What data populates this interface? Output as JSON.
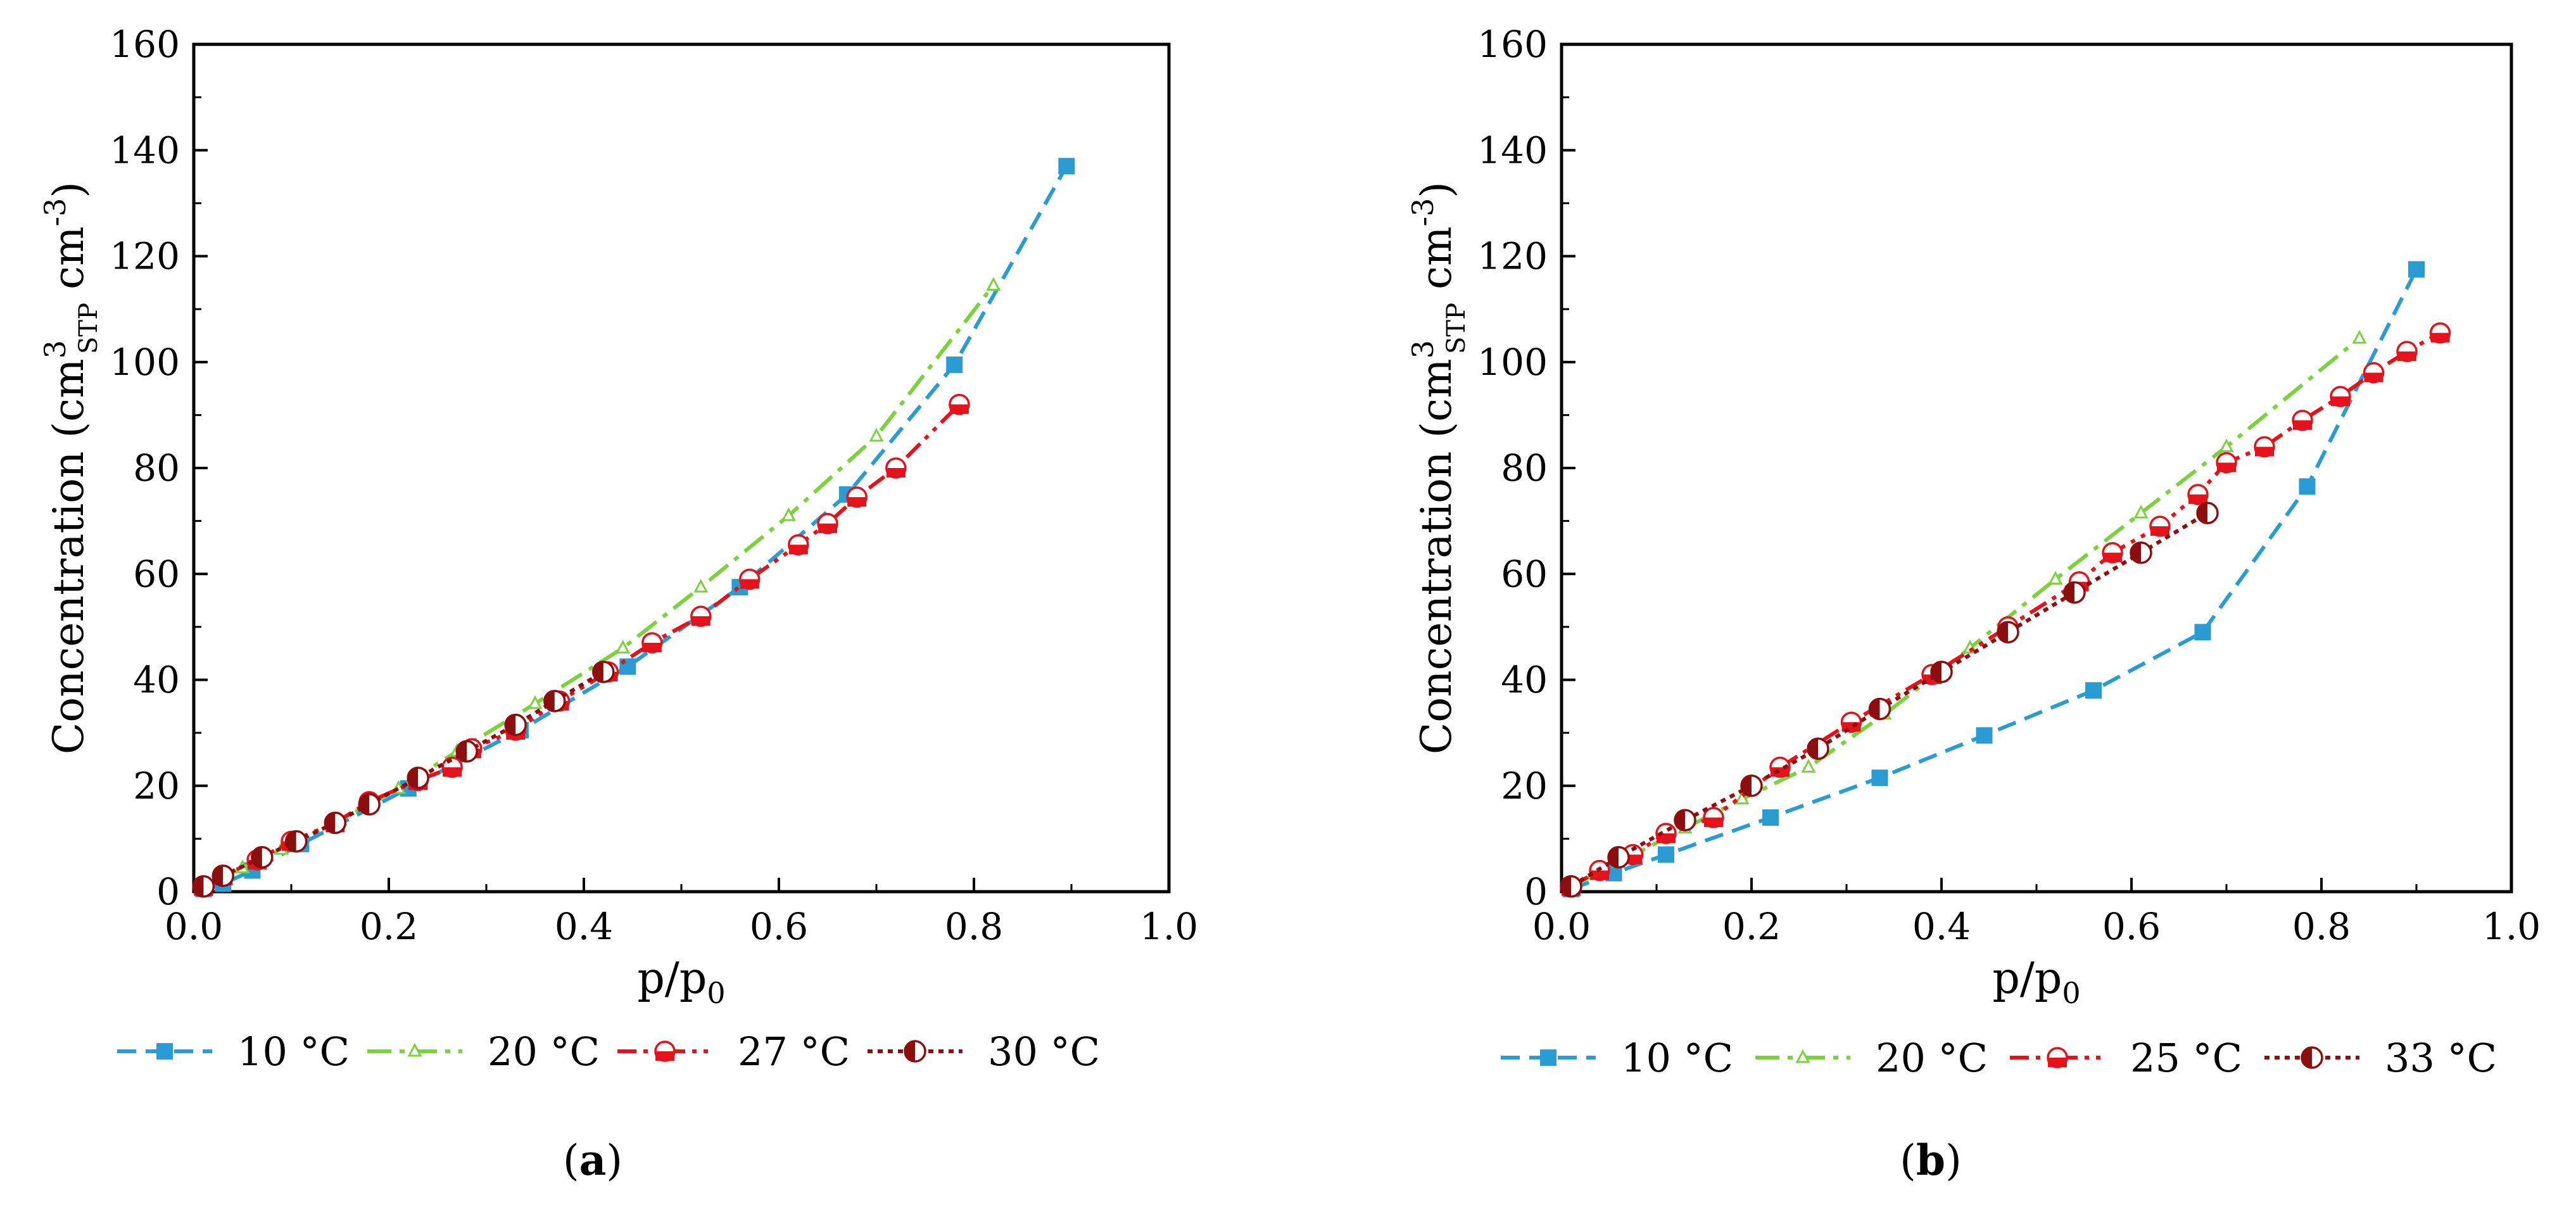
{
  "chart_data": [
    {
      "type": "line",
      "panel_label": "a",
      "xlabel_main": "p/p",
      "xlabel_sub": "0",
      "ylabel": {
        "prefix": "Concentration (cm",
        "sup1": "3",
        "sub": "STP",
        "mid": " cm",
        "sup2": "-3",
        "suffix": ")"
      },
      "xlim": [
        0.0,
        1.0
      ],
      "ylim": [
        0,
        160
      ],
      "xticks": [
        "0.0",
        "0.2",
        "0.4",
        "0.6",
        "0.8",
        "1.0"
      ],
      "yticks": [
        "0",
        "20",
        "40",
        "60",
        "80",
        "100",
        "120",
        "140",
        "160"
      ],
      "grid": false,
      "legend_position": "bottom",
      "series": [
        {
          "name": "10 °C",
          "color": "#2b9bd3",
          "dash": "dash",
          "marker": "square",
          "x": [
            0.01,
            0.03,
            0.06,
            0.11,
            0.22,
            0.335,
            0.445,
            0.56,
            0.67,
            0.78,
            0.895
          ],
          "y": [
            0.5,
            1.5,
            4,
            9,
            19.5,
            30.5,
            42.5,
            57.5,
            75,
            99.5,
            137
          ]
        },
        {
          "name": "20 °C",
          "color": "#7cd13f",
          "dash": "dashdot",
          "marker": "triangle",
          "x": [
            0.01,
            0.05,
            0.09,
            0.15,
            0.21,
            0.27,
            0.35,
            0.44,
            0.52,
            0.61,
            0.7,
            0.82
          ],
          "y": [
            1,
            4.5,
            8,
            13.5,
            19.5,
            26.5,
            35.5,
            46,
            57.5,
            71,
            86,
            114.5
          ]
        },
        {
          "name": "27 °C",
          "color": "#e5121c",
          "dash": "dashdotdot",
          "marker": "circle-half",
          "x": [
            0.01,
            0.03,
            0.065,
            0.1,
            0.145,
            0.18,
            0.23,
            0.265,
            0.285,
            0.33,
            0.375,
            0.425,
            0.47,
            0.52,
            0.57,
            0.62,
            0.65,
            0.68,
            0.72,
            0.785
          ],
          "y": [
            1,
            3,
            6,
            9.5,
            13,
            17,
            21,
            23.5,
            27,
            30.5,
            36,
            41.5,
            47,
            52,
            59,
            65.5,
            69.5,
            74.5,
            80,
            92
          ]
        },
        {
          "name": "30 °C",
          "color": "#8b0f0f",
          "dash": "dot",
          "marker": "circle-half-dark",
          "x": [
            0.01,
            0.03,
            0.07,
            0.105,
            0.145,
            0.18,
            0.23,
            0.28,
            0.33,
            0.37,
            0.42
          ],
          "y": [
            1,
            3,
            6.5,
            9.5,
            13,
            16.5,
            21.5,
            26.5,
            31.5,
            36,
            41.5
          ]
        }
      ]
    },
    {
      "type": "line",
      "panel_label": "b",
      "xlabel_main": "p/p",
      "xlabel_sub": "0",
      "ylabel": {
        "prefix": "Concentration (cm",
        "sup1": "3",
        "sub": "STP",
        "mid": " cm",
        "sup2": "-3",
        "suffix": ")"
      },
      "xlim": [
        0.0,
        1.0
      ],
      "ylim": [
        0,
        160
      ],
      "xticks": [
        "0.0",
        "0.2",
        "0.4",
        "0.6",
        "0.8",
        "1.0"
      ],
      "yticks": [
        "0",
        "20",
        "40",
        "60",
        "80",
        "100",
        "120",
        "140",
        "160"
      ],
      "grid": false,
      "legend_position": "bottom",
      "series": [
        {
          "name": "10 °C",
          "color": "#2b9bd3",
          "dash": "dash",
          "marker": "square",
          "x": [
            0.01,
            0.055,
            0.11,
            0.22,
            0.335,
            0.445,
            0.56,
            0.675,
            0.785,
            0.9
          ],
          "y": [
            0.5,
            3.5,
            7,
            14,
            21.5,
            29.5,
            38,
            49,
            76.5,
            117.5
          ]
        },
        {
          "name": "20 °C",
          "color": "#7cd13f",
          "dash": "dashdot",
          "marker": "triangle",
          "x": [
            0.01,
            0.06,
            0.13,
            0.19,
            0.26,
            0.34,
            0.43,
            0.52,
            0.61,
            0.7,
            0.84
          ],
          "y": [
            1,
            5.5,
            12,
            17.5,
            23.5,
            33.5,
            46,
            59,
            71.5,
            84,
            104.5
          ]
        },
        {
          "name": "25 °C",
          "color": "#e5121c",
          "dash": "dashdotdot",
          "marker": "circle-half",
          "x": [
            0.01,
            0.04,
            0.075,
            0.11,
            0.16,
            0.23,
            0.305,
            0.39,
            0.47,
            0.545,
            0.58,
            0.63,
            0.67,
            0.7,
            0.74,
            0.78,
            0.82,
            0.855,
            0.89,
            0.925
          ],
          "y": [
            1,
            4,
            7,
            11,
            14,
            23.5,
            32,
            41,
            50,
            58.5,
            64,
            69,
            75,
            81,
            84,
            89,
            93.5,
            98,
            102,
            105.5
          ]
        },
        {
          "name": "33 °C",
          "color": "#8b0f0f",
          "dash": "dot",
          "marker": "circle-half-dark",
          "x": [
            0.01,
            0.06,
            0.13,
            0.2,
            0.27,
            0.335,
            0.4,
            0.47,
            0.54,
            0.61,
            0.68
          ],
          "y": [
            1,
            6.5,
            13.5,
            20,
            27,
            34.5,
            41.5,
            49,
            56.5,
            64,
            71.5
          ]
        }
      ]
    }
  ]
}
